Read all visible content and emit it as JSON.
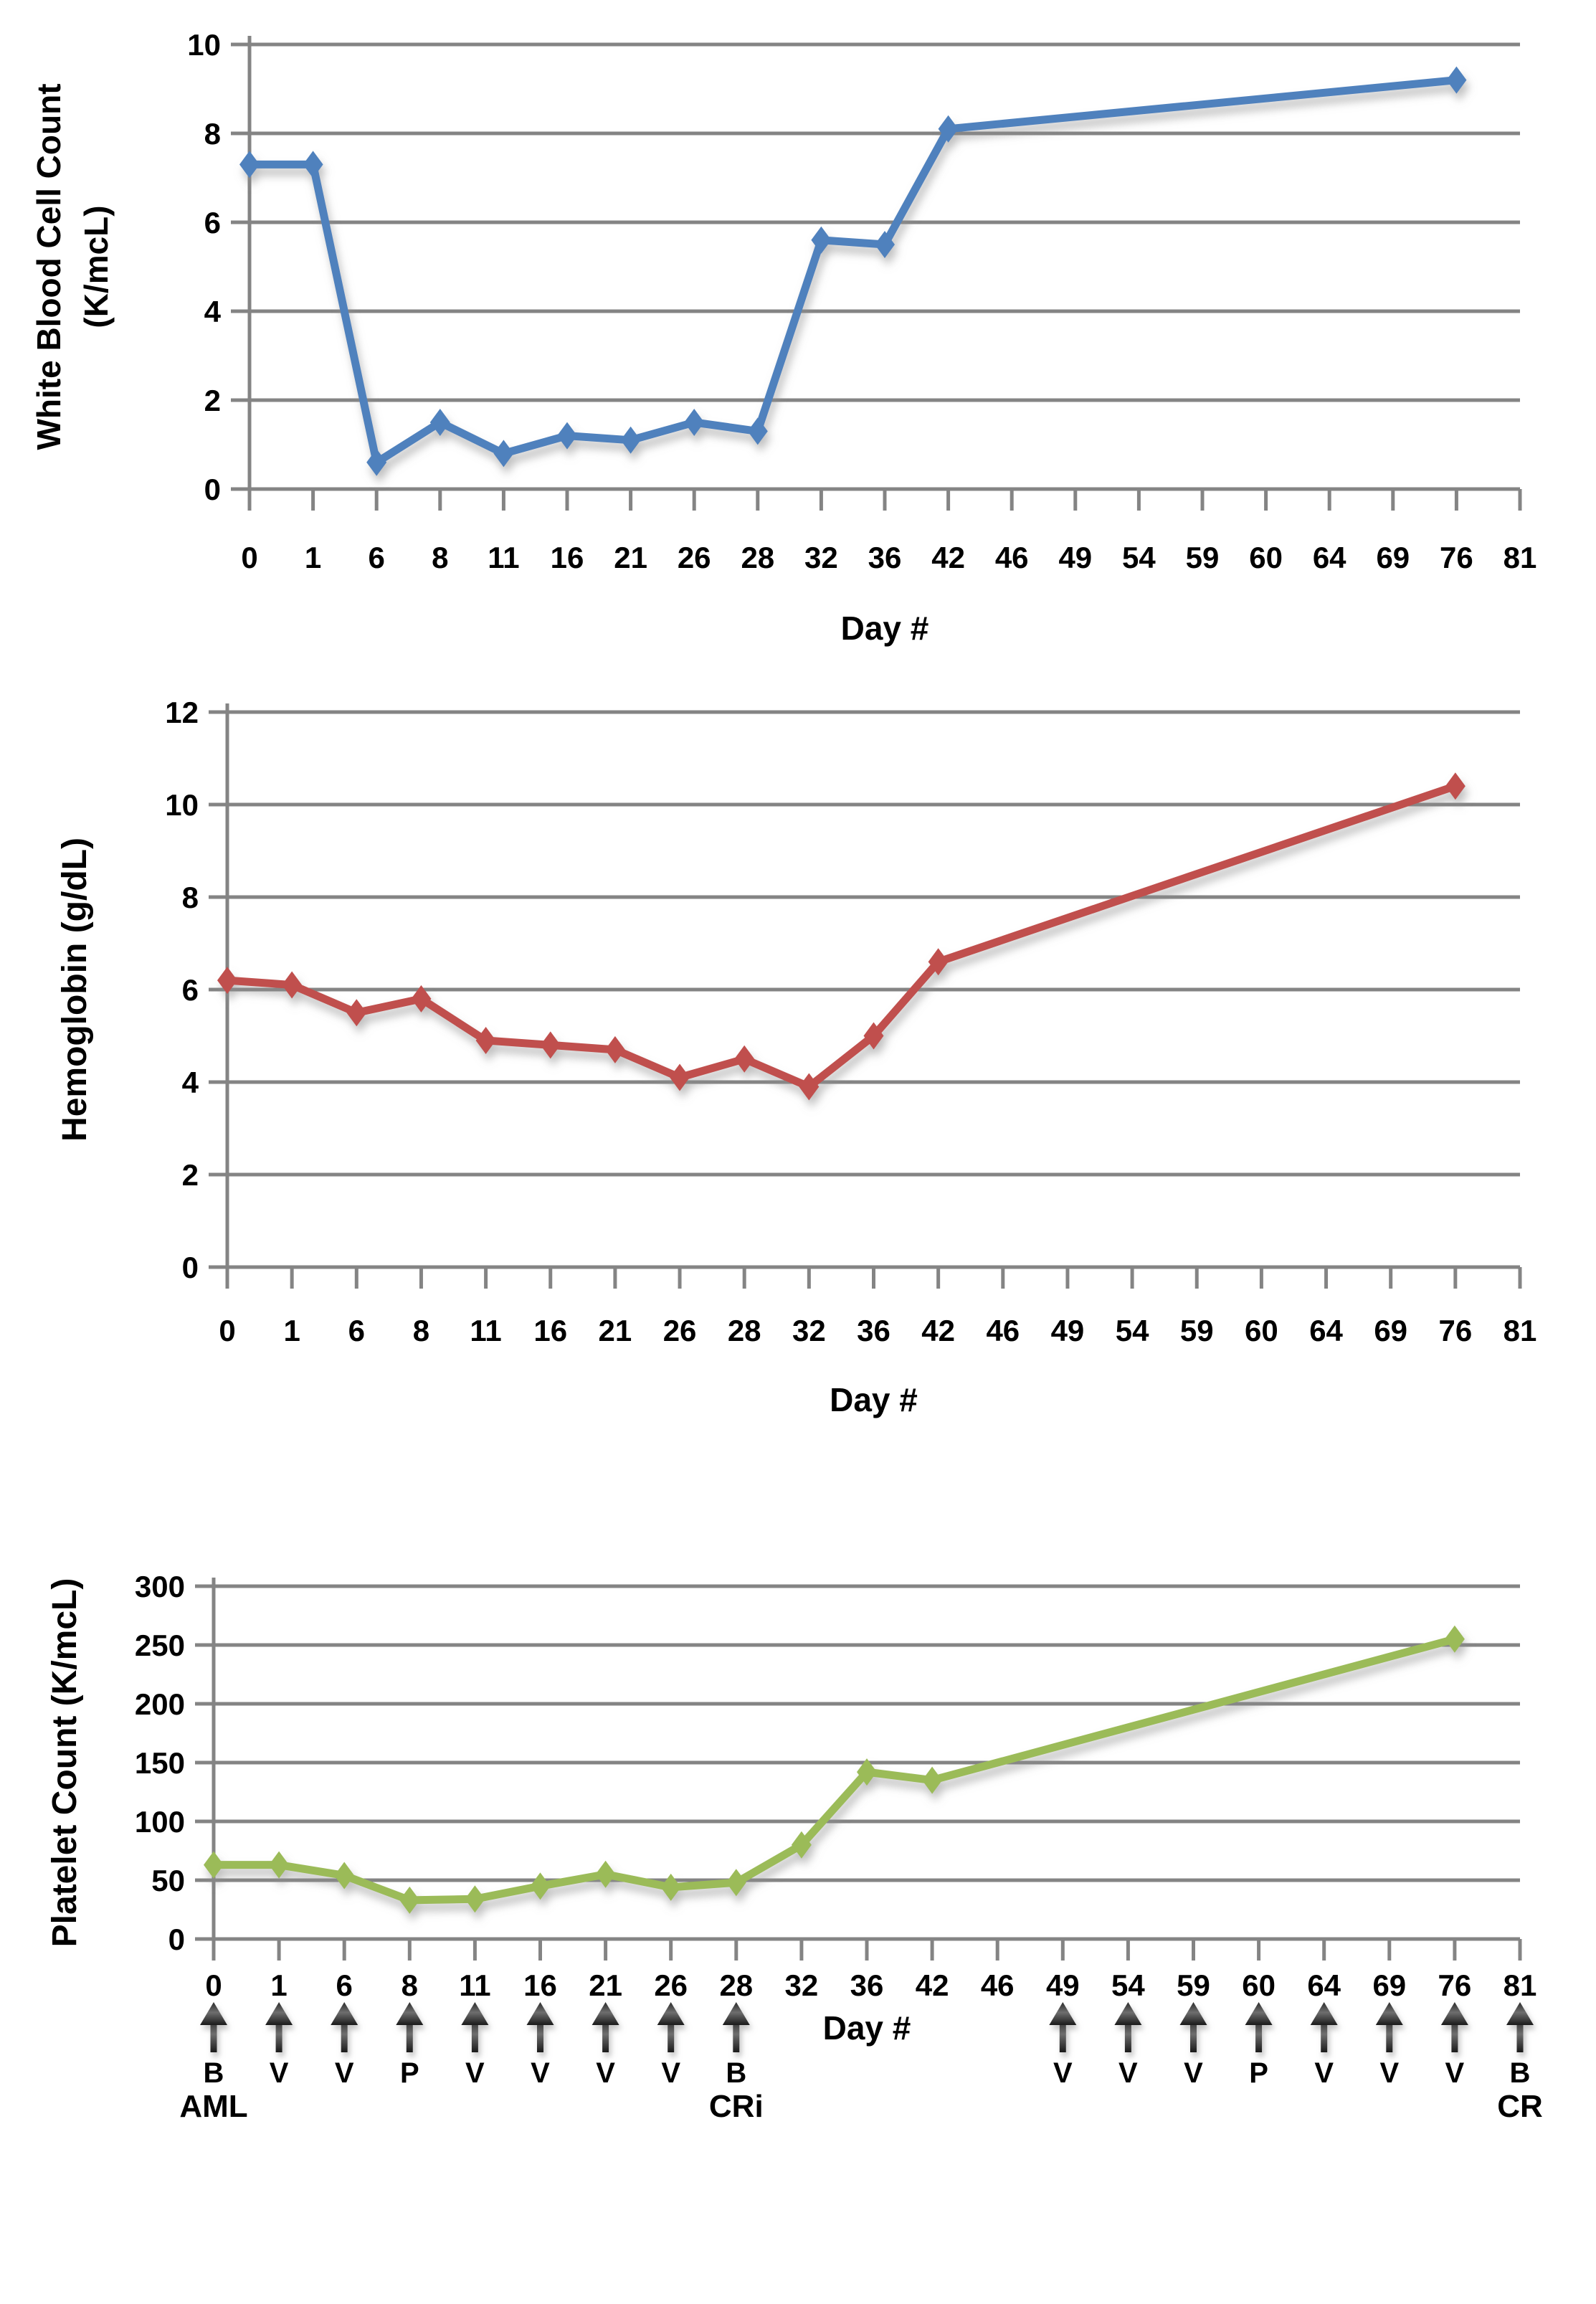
{
  "page": {
    "background": "#ffffff",
    "x_axis_title": "Day #"
  },
  "colors": {
    "gridline": "#848484",
    "axis": "#848484",
    "text": "#000000",
    "wbc_line": "#4f81bd",
    "hgb_line": "#c0504d",
    "plt_line": "#9bbb59",
    "arrow": "#3f3f3f"
  },
  "chart_data": [
    {
      "id": "wbc",
      "type": "line",
      "title": "",
      "xlabel": "Day #",
      "ylabel": "White Blood Cell Count (K/mcL)",
      "ylabel_lines": [
        "White Blood Cell Count",
        "(K/mcL)"
      ],
      "ylim": [
        0,
        10
      ],
      "ytick_step": 2,
      "ytick_labels": [
        "0",
        "2",
        "4",
        "6",
        "8",
        "10"
      ],
      "grid": true,
      "legend": "none",
      "marker": "diamond",
      "categories": [
        "0",
        "1",
        "6",
        "8",
        "11",
        "16",
        "21",
        "26",
        "28",
        "32",
        "36",
        "42",
        "46",
        "49",
        "54",
        "59",
        "60",
        "64",
        "69",
        "76",
        "81"
      ],
      "series": [
        {
          "name": "White Blood Cell Count",
          "color": "#4f81bd",
          "values": [
            7.3,
            7.3,
            0.6,
            1.5,
            0.8,
            1.2,
            1.1,
            1.5,
            1.3,
            5.6,
            5.5,
            8.1,
            null,
            null,
            null,
            null,
            null,
            null,
            null,
            9.2,
            null
          ]
        }
      ]
    },
    {
      "id": "hgb",
      "type": "line",
      "title": "",
      "xlabel": "Day #",
      "ylabel": "Hemoglobin (g/dL)",
      "ylabel_lines": [
        "Hemoglobin (g/dL)"
      ],
      "ylim": [
        0,
        12
      ],
      "ytick_step": 2,
      "ytick_labels": [
        "0",
        "2",
        "4",
        "6",
        "8",
        "10",
        "12"
      ],
      "grid": true,
      "legend": "none",
      "marker": "diamond",
      "categories": [
        "0",
        "1",
        "6",
        "8",
        "11",
        "16",
        "21",
        "26",
        "28",
        "32",
        "36",
        "42",
        "46",
        "49",
        "54",
        "59",
        "60",
        "64",
        "69",
        "76",
        "81"
      ],
      "series": [
        {
          "name": "Hemoglobin",
          "color": "#c0504d",
          "values": [
            6.2,
            6.1,
            5.5,
            5.8,
            4.9,
            4.8,
            4.7,
            4.1,
            4.5,
            3.9,
            5.0,
            6.6,
            null,
            null,
            null,
            null,
            null,
            null,
            null,
            10.4,
            null
          ]
        }
      ]
    },
    {
      "id": "plt",
      "type": "line",
      "title": "",
      "xlabel": "Day #",
      "ylabel": "Platelet Count (K/mcL)",
      "ylabel_lines": [
        "Platelet Count (K/mcL)"
      ],
      "ylim": [
        0,
        300
      ],
      "ytick_step": 50,
      "ytick_labels": [
        "0",
        "50",
        "100",
        "150",
        "200",
        "250",
        "300"
      ],
      "grid": true,
      "legend": "none",
      "marker": "diamond",
      "categories": [
        "0",
        "1",
        "6",
        "8",
        "11",
        "16",
        "21",
        "26",
        "28",
        "32",
        "36",
        "42",
        "46",
        "49",
        "54",
        "59",
        "60",
        "64",
        "69",
        "76",
        "81"
      ],
      "series": [
        {
          "name": "Platelet Count",
          "color": "#9bbb59",
          "values": [
            63,
            63,
            54,
            33,
            34,
            45,
            55,
            44,
            48,
            80,
            142,
            135,
            null,
            null,
            null,
            null,
            null,
            null,
            null,
            255,
            null
          ]
        }
      ]
    }
  ],
  "annotations": {
    "arrow_letters": [
      "B",
      "V",
      "V",
      "P",
      "V",
      "V",
      "V",
      "V",
      "B",
      null,
      null,
      null,
      null,
      "V",
      "V",
      "V",
      "P",
      "V",
      "V",
      "V",
      "B"
    ],
    "milestones": [
      {
        "label": "AML",
        "category_index": 0
      },
      {
        "label": "CRi",
        "category_index": 8
      },
      {
        "label": "CR",
        "category_index": 20
      }
    ]
  }
}
